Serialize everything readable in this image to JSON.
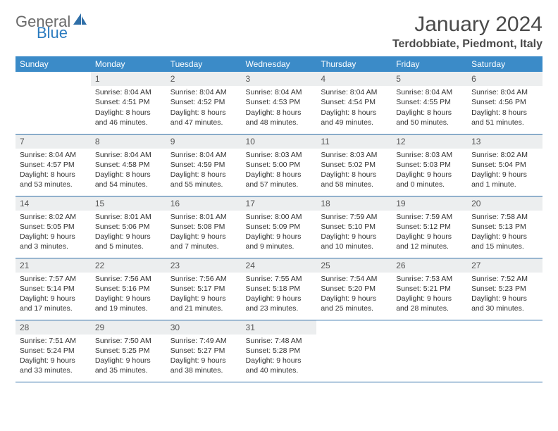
{
  "logo": {
    "gray": "General",
    "blue": "Blue"
  },
  "title": "January 2024",
  "location": "Terdobbiate, Piedmont, Italy",
  "header_bg": "#3b8bc8",
  "daynum_bg": "#eceeef",
  "rule_color": "#2f6fa8",
  "weekdays": [
    "Sunday",
    "Monday",
    "Tuesday",
    "Wednesday",
    "Thursday",
    "Friday",
    "Saturday"
  ],
  "weeks": [
    [
      null,
      {
        "n": "1",
        "sr": "8:04 AM",
        "ss": "4:51 PM",
        "d1": "8 hours",
        "d2": "and 46 minutes."
      },
      {
        "n": "2",
        "sr": "8:04 AM",
        "ss": "4:52 PM",
        "d1": "8 hours",
        "d2": "and 47 minutes."
      },
      {
        "n": "3",
        "sr": "8:04 AM",
        "ss": "4:53 PM",
        "d1": "8 hours",
        "d2": "and 48 minutes."
      },
      {
        "n": "4",
        "sr": "8:04 AM",
        "ss": "4:54 PM",
        "d1": "8 hours",
        "d2": "and 49 minutes."
      },
      {
        "n": "5",
        "sr": "8:04 AM",
        "ss": "4:55 PM",
        "d1": "8 hours",
        "d2": "and 50 minutes."
      },
      {
        "n": "6",
        "sr": "8:04 AM",
        "ss": "4:56 PM",
        "d1": "8 hours",
        "d2": "and 51 minutes."
      }
    ],
    [
      {
        "n": "7",
        "sr": "8:04 AM",
        "ss": "4:57 PM",
        "d1": "8 hours",
        "d2": "and 53 minutes."
      },
      {
        "n": "8",
        "sr": "8:04 AM",
        "ss": "4:58 PM",
        "d1": "8 hours",
        "d2": "and 54 minutes."
      },
      {
        "n": "9",
        "sr": "8:04 AM",
        "ss": "4:59 PM",
        "d1": "8 hours",
        "d2": "and 55 minutes."
      },
      {
        "n": "10",
        "sr": "8:03 AM",
        "ss": "5:00 PM",
        "d1": "8 hours",
        "d2": "and 57 minutes."
      },
      {
        "n": "11",
        "sr": "8:03 AM",
        "ss": "5:02 PM",
        "d1": "8 hours",
        "d2": "and 58 minutes."
      },
      {
        "n": "12",
        "sr": "8:03 AM",
        "ss": "5:03 PM",
        "d1": "9 hours",
        "d2": "and 0 minutes."
      },
      {
        "n": "13",
        "sr": "8:02 AM",
        "ss": "5:04 PM",
        "d1": "9 hours",
        "d2": "and 1 minute."
      }
    ],
    [
      {
        "n": "14",
        "sr": "8:02 AM",
        "ss": "5:05 PM",
        "d1": "9 hours",
        "d2": "and 3 minutes."
      },
      {
        "n": "15",
        "sr": "8:01 AM",
        "ss": "5:06 PM",
        "d1": "9 hours",
        "d2": "and 5 minutes."
      },
      {
        "n": "16",
        "sr": "8:01 AM",
        "ss": "5:08 PM",
        "d1": "9 hours",
        "d2": "and 7 minutes."
      },
      {
        "n": "17",
        "sr": "8:00 AM",
        "ss": "5:09 PM",
        "d1": "9 hours",
        "d2": "and 9 minutes."
      },
      {
        "n": "18",
        "sr": "7:59 AM",
        "ss": "5:10 PM",
        "d1": "9 hours",
        "d2": "and 10 minutes."
      },
      {
        "n": "19",
        "sr": "7:59 AM",
        "ss": "5:12 PM",
        "d1": "9 hours",
        "d2": "and 12 minutes."
      },
      {
        "n": "20",
        "sr": "7:58 AM",
        "ss": "5:13 PM",
        "d1": "9 hours",
        "d2": "and 15 minutes."
      }
    ],
    [
      {
        "n": "21",
        "sr": "7:57 AM",
        "ss": "5:14 PM",
        "d1": "9 hours",
        "d2": "and 17 minutes."
      },
      {
        "n": "22",
        "sr": "7:56 AM",
        "ss": "5:16 PM",
        "d1": "9 hours",
        "d2": "and 19 minutes."
      },
      {
        "n": "23",
        "sr": "7:56 AM",
        "ss": "5:17 PM",
        "d1": "9 hours",
        "d2": "and 21 minutes."
      },
      {
        "n": "24",
        "sr": "7:55 AM",
        "ss": "5:18 PM",
        "d1": "9 hours",
        "d2": "and 23 minutes."
      },
      {
        "n": "25",
        "sr": "7:54 AM",
        "ss": "5:20 PM",
        "d1": "9 hours",
        "d2": "and 25 minutes."
      },
      {
        "n": "26",
        "sr": "7:53 AM",
        "ss": "5:21 PM",
        "d1": "9 hours",
        "d2": "and 28 minutes."
      },
      {
        "n": "27",
        "sr": "7:52 AM",
        "ss": "5:23 PM",
        "d1": "9 hours",
        "d2": "and 30 minutes."
      }
    ],
    [
      {
        "n": "28",
        "sr": "7:51 AM",
        "ss": "5:24 PM",
        "d1": "9 hours",
        "d2": "and 33 minutes."
      },
      {
        "n": "29",
        "sr": "7:50 AM",
        "ss": "5:25 PM",
        "d1": "9 hours",
        "d2": "and 35 minutes."
      },
      {
        "n": "30",
        "sr": "7:49 AM",
        "ss": "5:27 PM",
        "d1": "9 hours",
        "d2": "and 38 minutes."
      },
      {
        "n": "31",
        "sr": "7:48 AM",
        "ss": "5:28 PM",
        "d1": "9 hours",
        "d2": "and 40 minutes."
      },
      null,
      null,
      null
    ]
  ],
  "labels": {
    "sunrise": "Sunrise: ",
    "sunset": "Sunset: ",
    "daylight": "Daylight: "
  }
}
